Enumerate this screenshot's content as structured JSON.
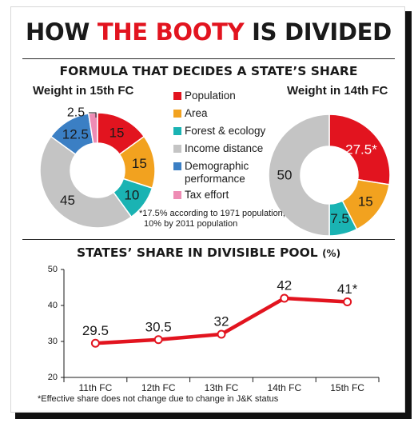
{
  "headline": {
    "part1": "HOW",
    "part2": "THE BOOTY",
    "part3": "IS DIVIDED"
  },
  "formula_heading": "FORMULA THAT DECIDES A STATE’S SHARE",
  "legend": [
    {
      "label": "Population",
      "color": "#e2141f"
    },
    {
      "label": "Area",
      "color": "#f2a21f"
    },
    {
      "label": "Forest & ecology",
      "color": "#1ab3b3"
    },
    {
      "label": "Income distance",
      "color": "#c4c4c4"
    },
    {
      "label": "Demographic",
      "label2": "performance",
      "color": "#3b7fc4"
    },
    {
      "label": "Tax effort",
      "color": "#ee8cb4"
    }
  ],
  "footnote_pop": {
    "line1": "*17.5% according to 1971 population,",
    "line2": "10% by 2011 population"
  },
  "footnote_jk": "*Effective share does not change due to change in J&K status",
  "chart_data": [
    {
      "type": "pie",
      "title": "Weight in 15th FC",
      "slices": [
        {
          "label": "Population",
          "value": 15,
          "display": "15",
          "color": "#e2141f"
        },
        {
          "label": "Area",
          "value": 15,
          "display": "15",
          "color": "#f2a21f"
        },
        {
          "label": "Forest & ecology",
          "value": 10,
          "display": "10",
          "color": "#1ab3b3"
        },
        {
          "label": "Income distance",
          "value": 45,
          "display": "45",
          "color": "#c4c4c4"
        },
        {
          "label": "Demographic performance",
          "value": 12.5,
          "display": "12.5",
          "color": "#3b7fc4"
        },
        {
          "label": "Tax effort",
          "value": 2.5,
          "display": "2.5",
          "color": "#ee8cb4"
        }
      ]
    },
    {
      "type": "pie",
      "title": "Weight in 14th FC",
      "slices": [
        {
          "label": "Population",
          "value": 27.5,
          "display": "27.5*",
          "color": "#e2141f"
        },
        {
          "label": "Area",
          "value": 15,
          "display": "15",
          "color": "#f2a21f"
        },
        {
          "label": "Forest & ecology",
          "value": 7.5,
          "display": "7.5",
          "color": "#1ab3b3"
        },
        {
          "label": "Income distance",
          "value": 50,
          "display": "50",
          "color": "#c4c4c4"
        }
      ]
    },
    {
      "type": "line",
      "title": "STATES’ SHARE IN DIVISIBLE POOL",
      "title_unit": "(%)",
      "categories": [
        "11th FC",
        "12th FC",
        "13th FC",
        "14th FC",
        "15th FC"
      ],
      "values": [
        29.5,
        30.5,
        32,
        42,
        41
      ],
      "value_labels": [
        "29.5",
        "30.5",
        "32",
        "42",
        "41*"
      ],
      "ylim": [
        20,
        50
      ],
      "yticks": [
        20,
        30,
        40,
        50
      ],
      "color": "#e2141f"
    }
  ]
}
